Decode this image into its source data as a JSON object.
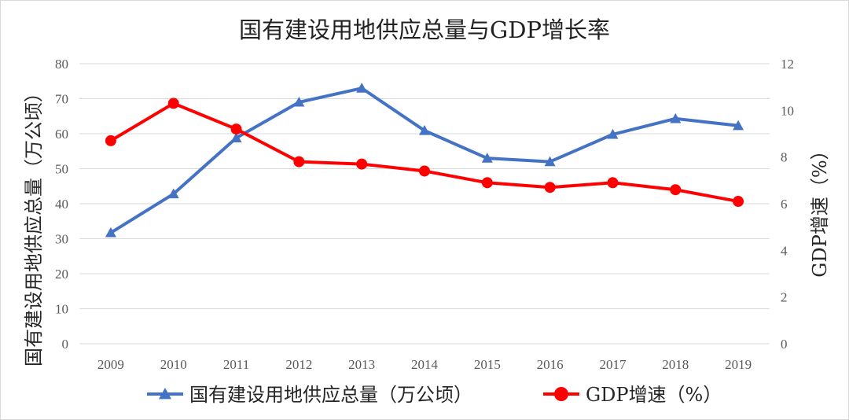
{
  "chart_data": {
    "type": "line",
    "title": "国有建设用地供应总量与GDP增长率",
    "categories": [
      "2009",
      "2010",
      "2011",
      "2012",
      "2013",
      "2014",
      "2015",
      "2016",
      "2017",
      "2018",
      "2019"
    ],
    "series": [
      {
        "name": "国有建设用地供应总量（万公顷）",
        "axis": "left",
        "color": "#4472C4",
        "marker": "triangle",
        "values": [
          31.7,
          42.8,
          58.8,
          69.0,
          73.0,
          60.9,
          53.0,
          52.0,
          59.8,
          64.3,
          62.3
        ]
      },
      {
        "name": "GDP增速（%）",
        "axis": "right",
        "color": "#FF0000",
        "marker": "circle",
        "values": [
          8.7,
          10.3,
          9.2,
          7.8,
          7.7,
          7.4,
          6.9,
          6.7,
          6.9,
          6.6,
          6.1
        ]
      }
    ],
    "y_left": {
      "label": "国有建设用地供应总量（万公顷）",
      "lim": [
        0,
        80
      ],
      "ticks": [
        "0",
        "10",
        "20",
        "30",
        "40",
        "50",
        "60",
        "70",
        "80"
      ]
    },
    "y_right": {
      "label": "GDP增速（%）",
      "lim": [
        0,
        12
      ],
      "ticks": [
        "0",
        "2",
        "4",
        "6",
        "8",
        "10",
        "12"
      ]
    },
    "grid": true,
    "legend": "bottom"
  }
}
